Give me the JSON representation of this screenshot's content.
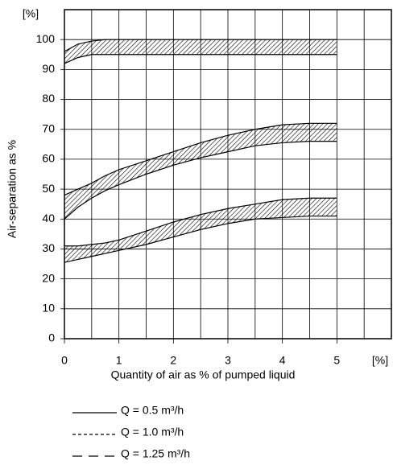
{
  "chart_data": {
    "type": "band",
    "xlabel": "Quantity of air as % of pumped liquid",
    "ylabel": "Air-separation as %",
    "x_unit": "[%]",
    "y_unit": "[%]",
    "x": [
      0,
      0.25,
      0.5,
      0.75,
      1,
      1.5,
      2,
      2.5,
      3,
      3.5,
      4,
      4.5,
      5
    ],
    "series": [
      {
        "name": "Q = 0.5 m³/h",
        "color": "#000000",
        "dash": "solid",
        "upper": [
          96,
          98.5,
          99.5,
          100,
          100,
          100,
          100,
          100,
          100,
          100,
          100,
          100,
          100
        ],
        "lower": [
          92,
          94,
          95,
          95,
          95,
          95,
          95,
          95,
          95,
          95,
          95,
          95,
          95
        ]
      },
      {
        "name": "Q = 1.0 m³/h",
        "color": "#000000",
        "dash": "dashed",
        "upper": [
          48,
          50,
          52,
          54.5,
          56.5,
          59.5,
          62.5,
          65.5,
          68,
          70,
          71.5,
          72,
          72
        ],
        "lower": [
          40,
          44,
          47,
          49.5,
          51.5,
          55,
          58,
          60.5,
          62.5,
          64.5,
          65.5,
          66,
          66
        ]
      },
      {
        "name": "Q = 1.25 m³/h",
        "color": "#000000",
        "dash": "longdash",
        "upper": [
          31,
          31,
          31.5,
          32,
          33,
          36,
          39,
          41.5,
          43.5,
          45,
          46.5,
          47,
          47
        ],
        "lower": [
          25.5,
          26.5,
          27.5,
          28.5,
          29.5,
          31.5,
          34,
          36.5,
          38.5,
          40,
          40.5,
          41,
          41
        ]
      }
    ],
    "xlim": [
      0,
      6
    ],
    "ylim": [
      0,
      110
    ],
    "xticks": [
      0,
      1,
      2,
      3,
      4,
      5
    ],
    "yticks": [
      0,
      10,
      20,
      30,
      40,
      50,
      60,
      70,
      80,
      90,
      100
    ],
    "grid": true
  }
}
